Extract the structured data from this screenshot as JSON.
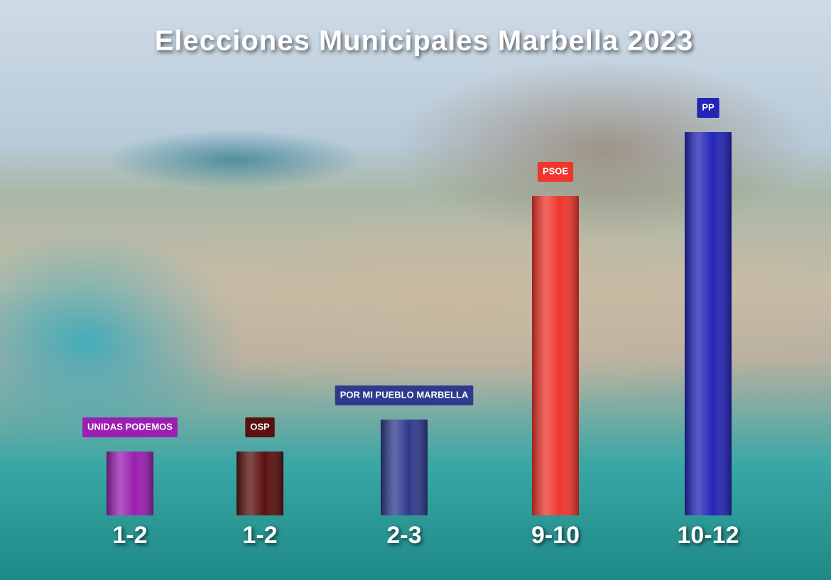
{
  "chart_data": {
    "type": "bar",
    "title": "Elecciones Municipales Marbella 2023",
    "categories": [
      "UNIDAS PODEMOS",
      "OSP",
      "POR MI PUEBLO MARBELLA",
      "PSOE",
      "PP"
    ],
    "low": [
      1,
      1,
      2,
      9,
      10
    ],
    "values": [
      2,
      2,
      3,
      10,
      12
    ],
    "value_labels": [
      "1-2",
      "1-2",
      "2-3",
      "9-10",
      "10-12"
    ],
    "colors": [
      "#9b1fb0",
      "#5a1010",
      "#2f3a8c",
      "#f0352c",
      "#2424b8"
    ]
  }
}
